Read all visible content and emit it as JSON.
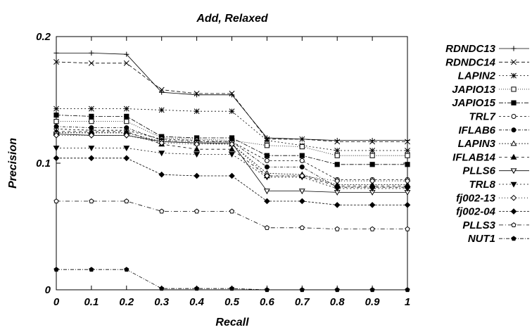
{
  "chart_data": {
    "type": "line",
    "title": "Add, Relaxed",
    "xlabel": "Recall",
    "ylabel": "Precision",
    "x": [
      0,
      0.1,
      0.2,
      0.3,
      0.4,
      0.5,
      0.6,
      0.7,
      0.8,
      0.9,
      1
    ],
    "xlim": [
      0,
      1
    ],
    "ylim": [
      0,
      0.2
    ],
    "x_tick_labels": [
      "0",
      "0.1",
      "0.2",
      "0.3",
      "0.4",
      "0.5",
      "0.6",
      "0.7",
      "0.8",
      "0.9",
      "1"
    ],
    "y_tick_values": [
      0,
      0.1,
      0.2
    ],
    "y_tick_labels": [
      "0",
      "0.1",
      "0.2"
    ],
    "grid": false,
    "legend_position": "right",
    "series": [
      {
        "name": "RDNDC13",
        "marker": "plus",
        "values": [
          0.187,
          0.187,
          0.186,
          0.156,
          0.154,
          0.154,
          0.12,
          0.119,
          0.118,
          0.118,
          0.118
        ]
      },
      {
        "name": "RDNDC14",
        "marker": "cross",
        "values": [
          0.18,
          0.179,
          0.179,
          0.158,
          0.155,
          0.155,
          0.119,
          0.119,
          0.117,
          0.117,
          0.117
        ]
      },
      {
        "name": "LAPIN2",
        "marker": "star",
        "values": [
          0.143,
          0.143,
          0.143,
          0.142,
          0.141,
          0.141,
          0.118,
          0.114,
          0.11,
          0.11,
          0.11
        ]
      },
      {
        "name": "JAPIO13",
        "marker": "square",
        "values": [
          0.133,
          0.133,
          0.133,
          0.12,
          0.119,
          0.118,
          0.114,
          0.113,
          0.106,
          0.106,
          0.106
        ]
      },
      {
        "name": "JAPIO15",
        "marker": "filled-square",
        "values": [
          0.138,
          0.137,
          0.137,
          0.121,
          0.12,
          0.12,
          0.106,
          0.106,
          0.099,
          0.099,
          0.099
        ]
      },
      {
        "name": "TRL7",
        "marker": "circle",
        "values": [
          0.127,
          0.126,
          0.126,
          0.119,
          0.118,
          0.117,
          0.102,
          0.102,
          0.087,
          0.087,
          0.087
        ]
      },
      {
        "name": "IFLAB6",
        "marker": "filled-circle",
        "values": [
          0.129,
          0.128,
          0.128,
          0.118,
          0.117,
          0.117,
          0.097,
          0.097,
          0.081,
          0.081,
          0.081
        ]
      },
      {
        "name": "LAPIN3",
        "marker": "triangle",
        "values": [
          0.124,
          0.124,
          0.124,
          0.117,
          0.116,
          0.115,
          0.092,
          0.091,
          0.083,
          0.083,
          0.083
        ]
      },
      {
        "name": "IFLAB14",
        "marker": "filled-triangle",
        "values": [
          0.125,
          0.125,
          0.125,
          0.115,
          0.111,
          0.111,
          0.09,
          0.09,
          0.082,
          0.082,
          0.082
        ]
      },
      {
        "name": "PLLS6",
        "marker": "inverted-triangle",
        "values": [
          0.123,
          0.122,
          0.122,
          0.117,
          0.116,
          0.116,
          0.078,
          0.078,
          0.077,
          0.077,
          0.077
        ]
      },
      {
        "name": "TRL8",
        "marker": "filled-inverted-triangle",
        "values": [
          0.112,
          0.112,
          0.112,
          0.108,
          0.107,
          0.107,
          0.089,
          0.089,
          0.08,
          0.08,
          0.08
        ]
      },
      {
        "name": "fj002-13",
        "marker": "diamond",
        "values": [
          0.122,
          0.122,
          0.122,
          0.116,
          0.115,
          0.115,
          0.09,
          0.09,
          0.086,
          0.086,
          0.086
        ]
      },
      {
        "name": "fj002-04",
        "marker": "filled-diamond",
        "values": [
          0.104,
          0.104,
          0.104,
          0.091,
          0.09,
          0.09,
          0.07,
          0.07,
          0.067,
          0.067,
          0.067
        ]
      },
      {
        "name": "PLLS3",
        "marker": "pentagon",
        "values": [
          0.07,
          0.07,
          0.07,
          0.062,
          0.062,
          0.062,
          0.049,
          0.049,
          0.048,
          0.048,
          0.048
        ]
      },
      {
        "name": "NUT1",
        "marker": "filled-pentagon",
        "values": [
          0.016,
          0.016,
          0.016,
          0.001,
          0.001,
          0.001,
          0,
          0,
          0,
          0,
          0
        ]
      }
    ]
  }
}
